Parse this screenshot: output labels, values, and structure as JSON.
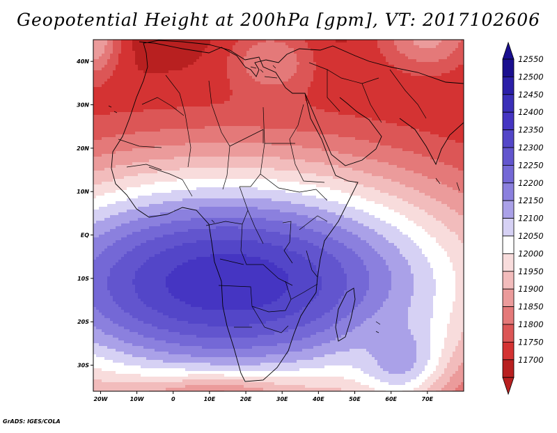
{
  "title": "Geopotential Height at 200hPa [gpm], VT: 2017102606",
  "credit": "GrADS: IGES/COLA",
  "map": {
    "lon_range": [
      -22,
      80
    ],
    "lat_range": [
      -36,
      45
    ],
    "lon_ticks": [
      {
        "value": -20,
        "label": "20W"
      },
      {
        "value": -10,
        "label": "10W"
      },
      {
        "value": 0,
        "label": "0"
      },
      {
        "value": 10,
        "label": "10E"
      },
      {
        "value": 20,
        "label": "20E"
      },
      {
        "value": 30,
        "label": "30E"
      },
      {
        "value": 40,
        "label": "40E"
      },
      {
        "value": 50,
        "label": "50E"
      },
      {
        "value": 60,
        "label": "60E"
      },
      {
        "value": 70,
        "label": "70E"
      }
    ],
    "lat_ticks": [
      {
        "value": 40,
        "label": "40N"
      },
      {
        "value": 30,
        "label": "30N"
      },
      {
        "value": 20,
        "label": "20N"
      },
      {
        "value": 10,
        "label": "10N"
      },
      {
        "value": 0,
        "label": "EQ"
      },
      {
        "value": -10,
        "label": "10S"
      },
      {
        "value": -20,
        "label": "20S"
      },
      {
        "value": -30,
        "label": "30S"
      }
    ],
    "field_features": [
      {
        "lon": 15,
        "lat": -11,
        "value": 12440,
        "spread_lon": 42,
        "spread_lat": 26
      },
      {
        "lon": 27,
        "lat": 40,
        "value": 11900,
        "spread_lon": 12,
        "spread_lat": 8
      },
      {
        "lon": 12,
        "lat": -38,
        "value": 11880,
        "spread_lon": 22,
        "spread_lat": 5
      },
      {
        "lon": 70,
        "lat": 46,
        "value": 11920,
        "spread_lon": 14,
        "spread_lat": 9
      },
      {
        "lon": -22,
        "lat": 45,
        "value": 11950,
        "spread_lon": 7,
        "spread_lat": 9
      },
      {
        "lon": 62,
        "lat": -28,
        "value": 12180,
        "spread_lon": 12,
        "spread_lat": 10
      }
    ]
  },
  "colorbar": {
    "levels": [
      12550,
      12500,
      12450,
      12400,
      12350,
      12300,
      12250,
      12200,
      12150,
      12100,
      12050,
      12000,
      11950,
      11900,
      11850,
      11800,
      11750,
      11700
    ],
    "colors": [
      "#1a0f8f",
      "#2b1fa8",
      "#3a2fb8",
      "#4535c2",
      "#5346c8",
      "#6255ce",
      "#7468d6",
      "#8b80de",
      "#aaa1e8",
      "#d6d1f4",
      "#ffffff",
      "#f8dcdc",
      "#f2bcbc",
      "#eb9b9b",
      "#e47979",
      "#dc5656",
      "#d43333",
      "#b82020"
    ]
  }
}
